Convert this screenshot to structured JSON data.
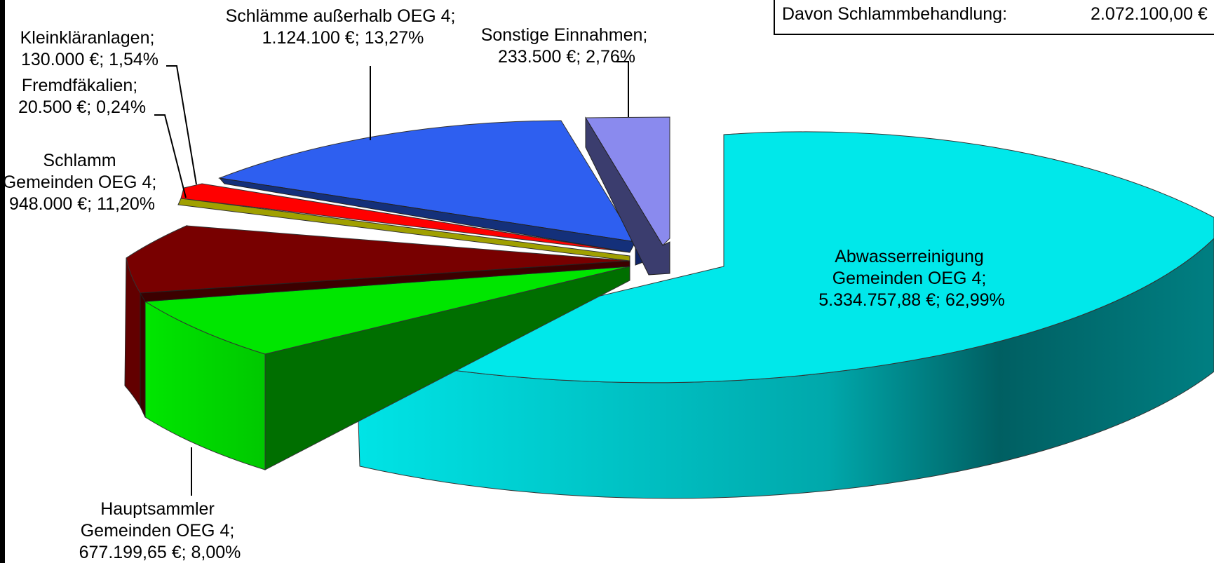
{
  "chart_data": {
    "type": "pie",
    "style": "3d-exploded",
    "slices": [
      {
        "name": "Abwasserreinigung Gemeinden OEG 4",
        "value": 5334757.88,
        "percent": 62.99,
        "label_lines": [
          "Abwasserreinigung",
          "Gemeinden OEG 4;",
          "5.334.757,88 €; 62,99%"
        ],
        "color": "#00E6E8"
      },
      {
        "name": "Hauptsammler Gemeinden OEG 4",
        "value": 677199.65,
        "percent": 8.0,
        "label_lines": [
          "Hauptsammler",
          "Gemeinden OEG 4;",
          "677.199,65 €; 8,00%"
        ],
        "color": "#00E600"
      },
      {
        "name": "Schlamm Gemeinden OEG 4",
        "value": 948000,
        "percent": 11.2,
        "label_lines": [
          "Schlamm",
          "Gemeinden OEG 4;",
          "948.000 €; 11,20%"
        ],
        "color": "#780000"
      },
      {
        "name": "Fremdfäkalien",
        "value": 20500,
        "percent": 0.24,
        "label_lines": [
          "Fremdfäkalien;",
          "20.500 €; 0,24%"
        ],
        "color": "#9C9C00"
      },
      {
        "name": "Kleinkläranlagen",
        "value": 130000,
        "percent": 1.54,
        "label_lines": [
          "Kleinkläranlagen;",
          "130.000 €; 1,54%"
        ],
        "color": "#FF0000"
      },
      {
        "name": "Schlämme außerhalb OEG 4",
        "value": 1124100,
        "percent": 13.27,
        "label_lines": [
          "Schlämme außerhalb OEG 4;",
          "1.124.100 €; 13,27%"
        ],
        "color": "#2E5FF0"
      },
      {
        "name": "Sonstige Einnahmen",
        "value": 233500,
        "percent": 2.76,
        "label_lines": [
          "Sonstige Einnahmen;",
          "233.500 €; 2,76%"
        ],
        "color": "#8A8AEE"
      }
    ]
  },
  "info_box": {
    "label": "Davon Schlammbehandlung:",
    "value": "2.072.100,00 €"
  }
}
